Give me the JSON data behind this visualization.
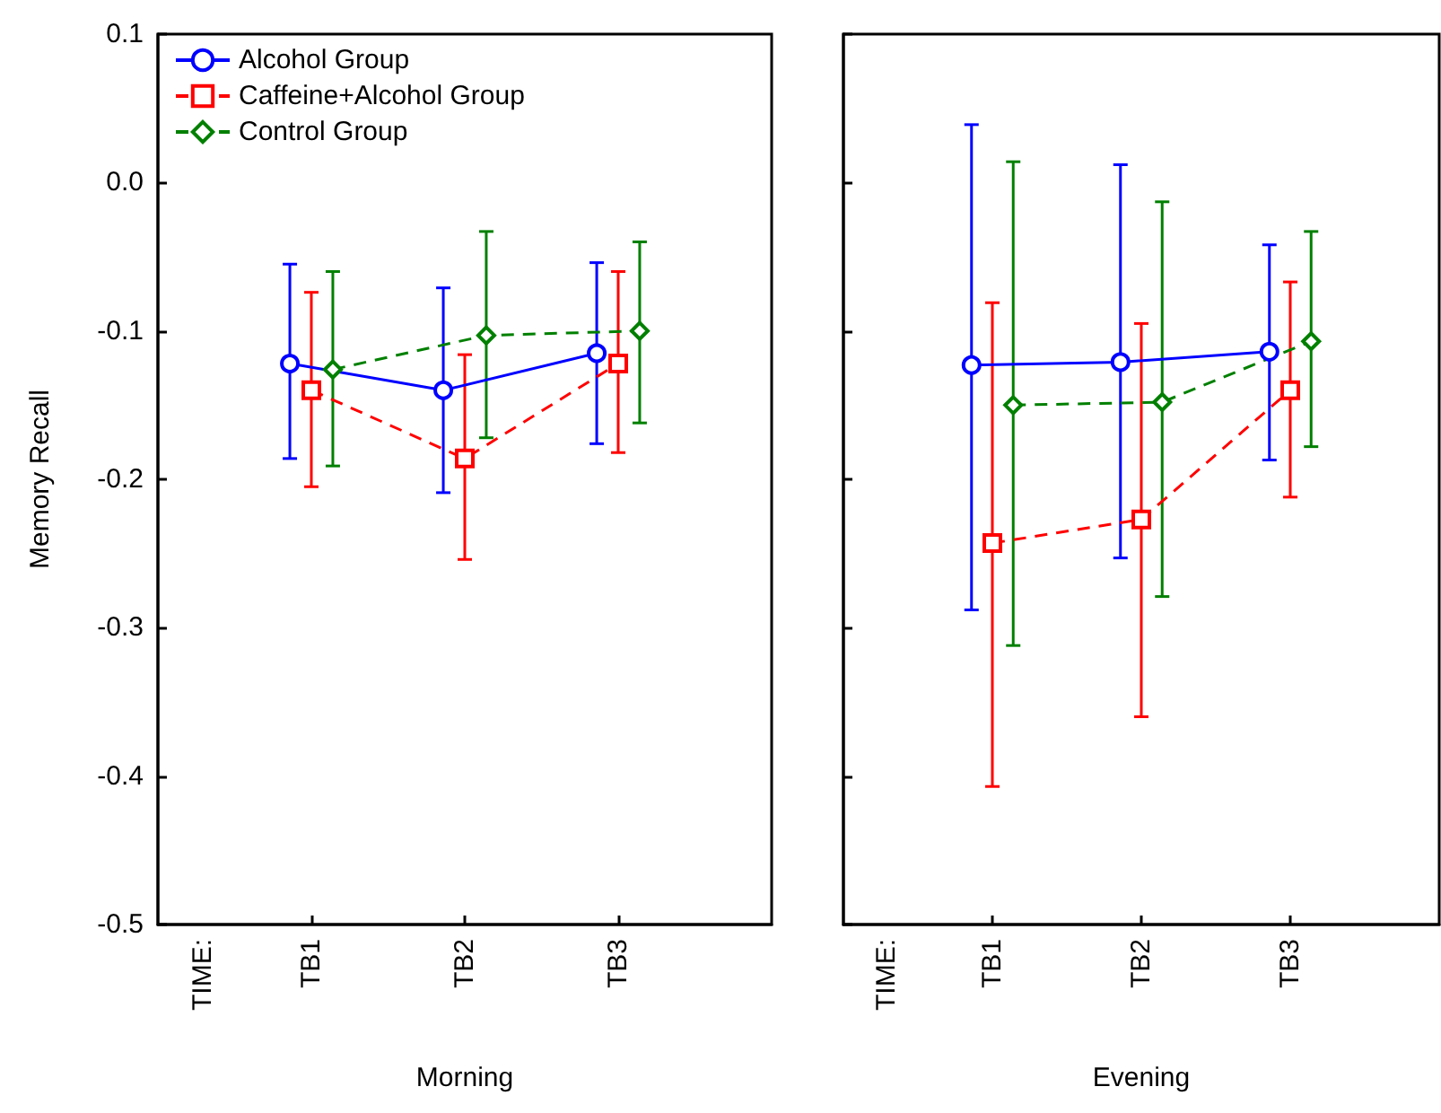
{
  "chart_data": [
    {
      "type": "line",
      "xlabel": "Morning",
      "ylabel": "Memory Recall",
      "annotations": [
        "TIME:"
      ],
      "categories": [
        "TB1",
        "TB2",
        "TB3"
      ],
      "ylim": [
        -0.5,
        0.1
      ],
      "yticks": [
        {
          "value": -0.5,
          "label": "-0.5"
        },
        {
          "value": -0.4,
          "label": "-0.4"
        },
        {
          "value": -0.3,
          "label": "-0.3"
        },
        {
          "value": -0.2,
          "label": "-0.2"
        },
        {
          "value": -0.1,
          "label": "-0.1"
        },
        {
          "value": 0,
          "label": "0.0"
        },
        {
          "value": 0.1,
          "label": "0.1"
        }
      ],
      "legend": "top left",
      "grid": false,
      "series": [
        {
          "name": "Alcohol Group",
          "color": "#0000ff",
          "marker": "circle",
          "line_style": "solid",
          "values": [
            -0.122,
            -0.14,
            -0.115
          ],
          "errors": [
            [
              -0.186,
              -0.055
            ],
            [
              -0.209,
              -0.071
            ],
            [
              -0.176,
              -0.054
            ]
          ]
        },
        {
          "name": "Caffeine+Alcohol Group",
          "color": "#ff0000",
          "marker": "square",
          "line_style": "dashed",
          "values": [
            -0.14,
            -0.186,
            -0.122
          ],
          "errors": [
            [
              -0.205,
              -0.074
            ],
            [
              -0.254,
              -0.116
            ],
            [
              -0.182,
              -0.06
            ]
          ]
        },
        {
          "name": "Control Group",
          "color": "#008000",
          "marker": "diamond",
          "line_style": "dashed",
          "values": [
            -0.126,
            -0.103,
            -0.1
          ],
          "errors": [
            [
              -0.191,
              -0.06
            ],
            [
              -0.172,
              -0.033
            ],
            [
              -0.162,
              -0.04
            ]
          ]
        }
      ]
    },
    {
      "type": "line",
      "xlabel": "Evening",
      "annotations": [
        "TIME:"
      ],
      "categories": [
        "TB1",
        "TB2",
        "TB3"
      ],
      "ylim": [
        -0.5,
        0.1
      ],
      "tick_labels": "x",
      "yticks": [
        -0.5,
        -0.4,
        -0.3,
        -0.2,
        -0.1,
        0,
        0.1
      ],
      "grid": false,
      "series": [
        {
          "color": "#0000ff",
          "marker": "circle",
          "line_style": "solid",
          "values": [
            -0.123,
            -0.121,
            -0.114
          ],
          "errors": [
            [
              -0.288,
              0.039
            ],
            [
              -0.253,
              0.012
            ],
            [
              -0.187,
              -0.042
            ]
          ]
        },
        {
          "color": "#ff0000",
          "marker": "square",
          "line_style": "dashed",
          "values": [
            -0.243,
            -0.227,
            -0.14
          ],
          "errors": [
            [
              -0.407,
              -0.081
            ],
            [
              -0.36,
              -0.095
            ],
            [
              -0.212,
              -0.067
            ]
          ]
        },
        {
          "color": "#008000",
          "marker": "diamond",
          "line_style": "dashed",
          "values": [
            -0.15,
            -0.148,
            -0.107
          ],
          "errors": [
            [
              -0.312,
              0.014
            ],
            [
              -0.279,
              -0.013
            ],
            [
              -0.178,
              -0.033
            ]
          ]
        }
      ]
    }
  ]
}
